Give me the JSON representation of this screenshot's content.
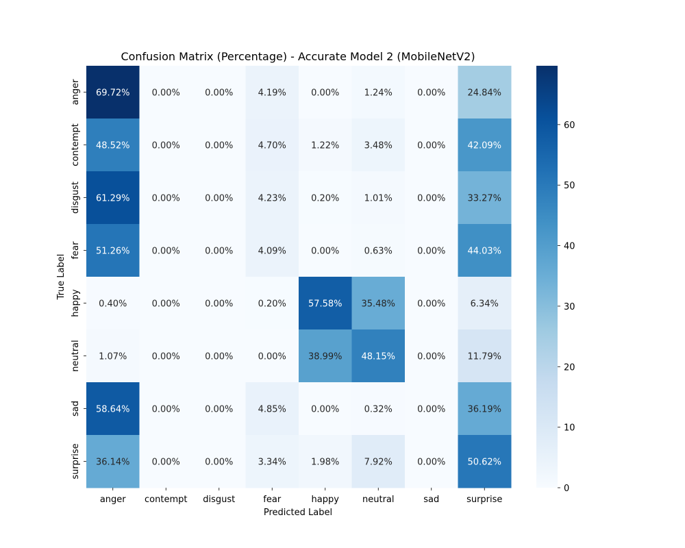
{
  "chart_data": {
    "type": "heatmap",
    "title": "Confusion Matrix (Percentage) - Accurate Model 2 (MobileNetV2)",
    "xlabel": "Predicted Label",
    "ylabel": "True Label",
    "x_categories": [
      "anger",
      "contempt",
      "disgust",
      "fear",
      "happy",
      "neutral",
      "sad",
      "surprise"
    ],
    "y_categories": [
      "anger",
      "contempt",
      "disgust",
      "fear",
      "happy",
      "neutral",
      "sad",
      "surprise"
    ],
    "values": [
      [
        69.72,
        0.0,
        0.0,
        4.19,
        0.0,
        1.24,
        0.0,
        24.84
      ],
      [
        48.52,
        0.0,
        0.0,
        4.7,
        1.22,
        3.48,
        0.0,
        42.09
      ],
      [
        61.29,
        0.0,
        0.0,
        4.23,
        0.2,
        1.01,
        0.0,
        33.27
      ],
      [
        51.26,
        0.0,
        0.0,
        4.09,
        0.0,
        0.63,
        0.0,
        44.03
      ],
      [
        0.4,
        0.0,
        0.0,
        0.2,
        57.58,
        35.48,
        0.0,
        6.34
      ],
      [
        1.07,
        0.0,
        0.0,
        0.0,
        38.99,
        48.15,
        0.0,
        11.79
      ],
      [
        58.64,
        0.0,
        0.0,
        4.85,
        0.0,
        0.32,
        0.0,
        36.19
      ],
      [
        36.14,
        0.0,
        0.0,
        3.34,
        1.98,
        7.92,
        0.0,
        50.62
      ]
    ],
    "value_suffix": "%",
    "colormap": "Blues",
    "colorbar": {
      "min": 0,
      "max": 69.72,
      "ticks": [
        0,
        10,
        20,
        30,
        40,
        50,
        60
      ]
    },
    "grid": false
  }
}
